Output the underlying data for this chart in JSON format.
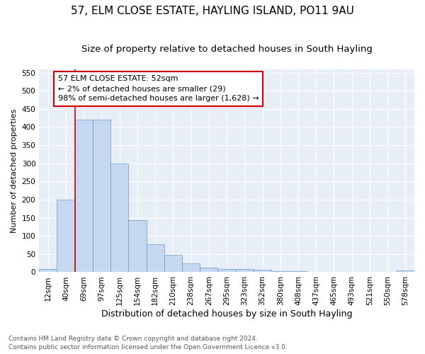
{
  "title": "57, ELM CLOSE ESTATE, HAYLING ISLAND, PO11 9AU",
  "subtitle": "Size of property relative to detached houses in South Hayling",
  "xlabel": "Distribution of detached houses by size in South Hayling",
  "ylabel": "Number of detached properties",
  "categories": [
    "12sqm",
    "40sqm",
    "69sqm",
    "97sqm",
    "125sqm",
    "154sqm",
    "182sqm",
    "210sqm",
    "238sqm",
    "267sqm",
    "295sqm",
    "323sqm",
    "352sqm",
    "380sqm",
    "408sqm",
    "437sqm",
    "465sqm",
    "493sqm",
    "521sqm",
    "550sqm",
    "578sqm"
  ],
  "values": [
    8,
    200,
    420,
    420,
    300,
    143,
    77,
    48,
    24,
    12,
    9,
    8,
    7,
    3,
    3,
    0,
    0,
    0,
    0,
    0,
    4
  ],
  "bar_color": "#c5d8f0",
  "bar_edge_color": "#6699cc",
  "vline_x": 1.5,
  "vline_color": "#cc0000",
  "annotation_line1": "57 ELM CLOSE ESTATE: 52sqm",
  "annotation_line2": "← 2% of detached houses are smaller (29)",
  "annotation_line3": "98% of semi-detached houses are larger (1,628) →",
  "annotation_box_color": "#cc0000",
  "annotation_box_bg": "#ffffff",
  "footnote1": "Contains HM Land Registry data © Crown copyright and database right 2024.",
  "footnote2": "Contains public sector information licensed under the Open Government Licence v3.0.",
  "ylim": [
    0,
    560
  ],
  "yticks": [
    0,
    50,
    100,
    150,
    200,
    250,
    300,
    350,
    400,
    450,
    500,
    550
  ],
  "plot_bg_color": "#e8eef7",
  "title_fontsize": 11,
  "subtitle_fontsize": 9.5,
  "xlabel_fontsize": 9,
  "ylabel_fontsize": 8,
  "tick_fontsize": 7.5,
  "footnote_fontsize": 6.5
}
